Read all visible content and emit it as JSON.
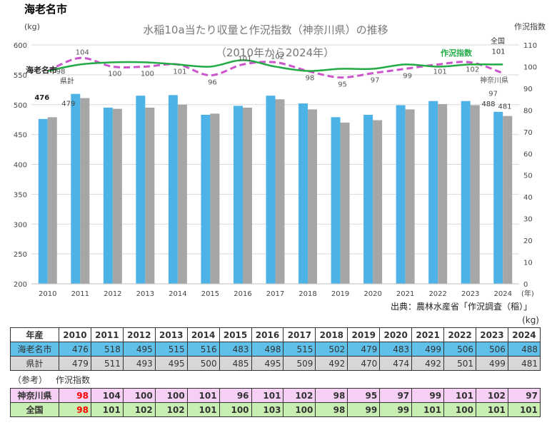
{
  "page_title": "海老名市",
  "chart_data": {
    "type": "bar+line",
    "title": "水稲10a当たり収量と作況指数（神奈川県）の推移",
    "subtitle": "（2010年から2024年）",
    "ylabel_left": "(kg)",
    "ylabel_right": "作況指数",
    "xunit": "(年)",
    "source": "出典：農林水産省「作況調査（稲）」",
    "ylim_left": [
      200,
      600
    ],
    "ylim_right": [
      0,
      110
    ],
    "yticks_left": [
      "200",
      "250",
      "300",
      "350",
      "400",
      "450",
      "500",
      "550",
      "600"
    ],
    "yticks_right": [
      "0",
      "10",
      "20",
      "30",
      "40",
      "50",
      "60",
      "70",
      "80",
      "90",
      "100",
      "110"
    ],
    "categories": [
      "2010",
      "2011",
      "2012",
      "2013",
      "2014",
      "2015",
      "2016",
      "2017",
      "2018",
      "2019",
      "2020",
      "2021",
      "2022",
      "2023",
      "2024"
    ],
    "grid": true,
    "series": [
      {
        "name": "海老名市",
        "kind": "bar",
        "axis": "left",
        "color": "#4db3e6",
        "values": [
          476,
          518,
          495,
          515,
          516,
          483,
          498,
          515,
          502,
          479,
          483,
          499,
          506,
          506,
          488
        ]
      },
      {
        "name": "県計",
        "kind": "bar",
        "axis": "left",
        "color": "#a6a6a6",
        "values": [
          479,
          511,
          493,
          495,
          500,
          485,
          495,
          509,
          492,
          470,
          474,
          492,
          501,
          499,
          481
        ]
      },
      {
        "name": "神奈川県",
        "kind": "line-dashed",
        "axis": "right",
        "color": "#cc55cc",
        "values": [
          98,
          104,
          100,
          100,
          101,
          96,
          101,
          102,
          98,
          95,
          97,
          99,
          101,
          102,
          97
        ]
      },
      {
        "name": "全国",
        "kind": "line",
        "axis": "right",
        "color": "#22aa44",
        "values": [
          98,
          101,
          102,
          102,
          101,
          100,
          103,
          100,
          98,
          99,
          99,
          101,
          100,
          101,
          101
        ]
      }
    ],
    "annotations": {
      "ebina_label": "海老名市",
      "kenkei_label": "県計",
      "sakkyo_label": "作況指数",
      "zenkoku_label": "全国",
      "kanagawa_label": "神奈川県"
    }
  },
  "table": {
    "unit": "(kg)",
    "header_label": "年産",
    "rows": [
      {
        "label": "海老名市",
        "values": [
          "476",
          "518",
          "495",
          "515",
          "516",
          "483",
          "498",
          "515",
          "502",
          "479",
          "483",
          "499",
          "506",
          "506",
          "488"
        ]
      },
      {
        "label": "県計",
        "values": [
          "479",
          "511",
          "493",
          "495",
          "500",
          "485",
          "495",
          "509",
          "492",
          "470",
          "474",
          "492",
          "501",
          "499",
          "481"
        ]
      }
    ],
    "ref_label": "（参考）",
    "ref_title": "作況指数",
    "ref_rows": [
      {
        "label": "神奈川県",
        "values": [
          "98",
          "104",
          "100",
          "100",
          "101",
          "96",
          "101",
          "102",
          "98",
          "95",
          "97",
          "99",
          "101",
          "102",
          "97"
        ]
      },
      {
        "label": "全国",
        "values": [
          "98",
          "101",
          "102",
          "102",
          "101",
          "100",
          "103",
          "100",
          "98",
          "99",
          "99",
          "101",
          "100",
          "101",
          "101"
        ]
      }
    ],
    "highlight_color": "#ff0000"
  }
}
